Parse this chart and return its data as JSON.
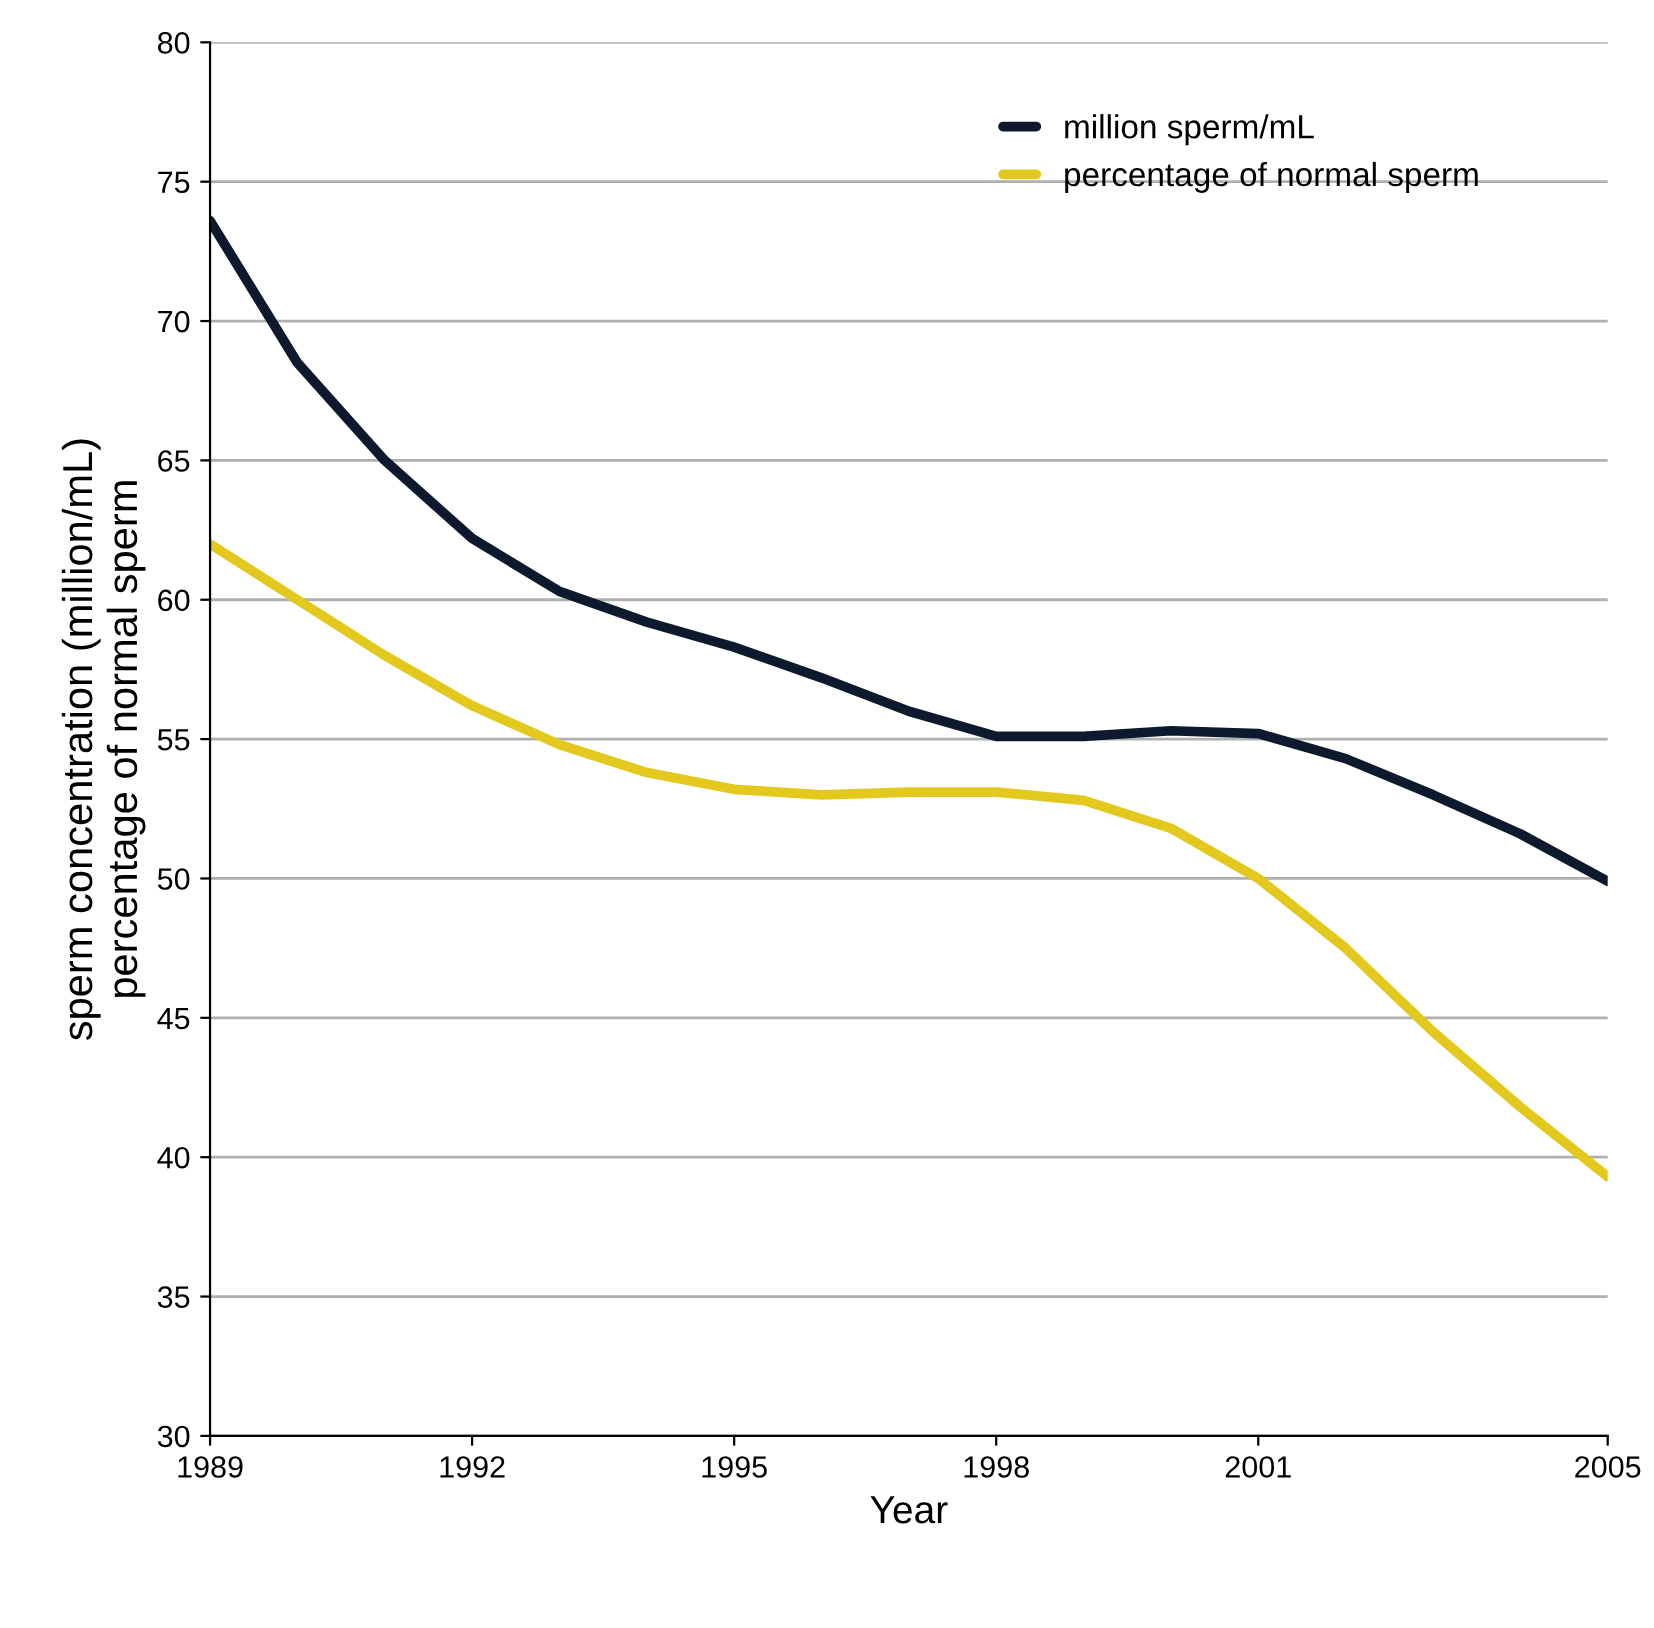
{
  "chart_data": {
    "type": "line",
    "xlabel": "Year",
    "ylabel": "sperm concentration (million/mL)\npercentage of normal sperm",
    "x": [
      1989,
      1990,
      1991,
      1992,
      1993,
      1994,
      1995,
      1996,
      1997,
      1998,
      1999,
      2000,
      2001,
      2002,
      2003,
      2004,
      2005
    ],
    "series": [
      {
        "name": "million sperm/mL",
        "color": "#0d1a2e",
        "values": [
          73.6,
          68.5,
          65,
          62.2,
          60.3,
          59.2,
          58.3,
          57.2,
          56,
          55.1,
          55.1,
          55.3,
          55.2,
          54.3,
          53,
          51.6,
          49.9
        ]
      },
      {
        "name": "percentage of normal sperm",
        "color": "#e3c81e",
        "values": [
          62,
          60,
          58,
          56.2,
          54.8,
          53.8,
          53.2,
          53,
          53.1,
          53.1,
          52.8,
          51.8,
          50,
          47.5,
          44.5,
          41.8,
          39.3
        ]
      }
    ],
    "xlim": [
      1989,
      2005
    ],
    "xticks": [
      1989,
      1992,
      1995,
      1998,
      2001,
      2005
    ],
    "ylim": [
      30,
      80
    ],
    "yticks": [
      30,
      35,
      40,
      45,
      50,
      55,
      60,
      65,
      70,
      75,
      80
    ],
    "grid": "y",
    "legend": "top right",
    "marker": "none",
    "line_style": "solid"
  }
}
